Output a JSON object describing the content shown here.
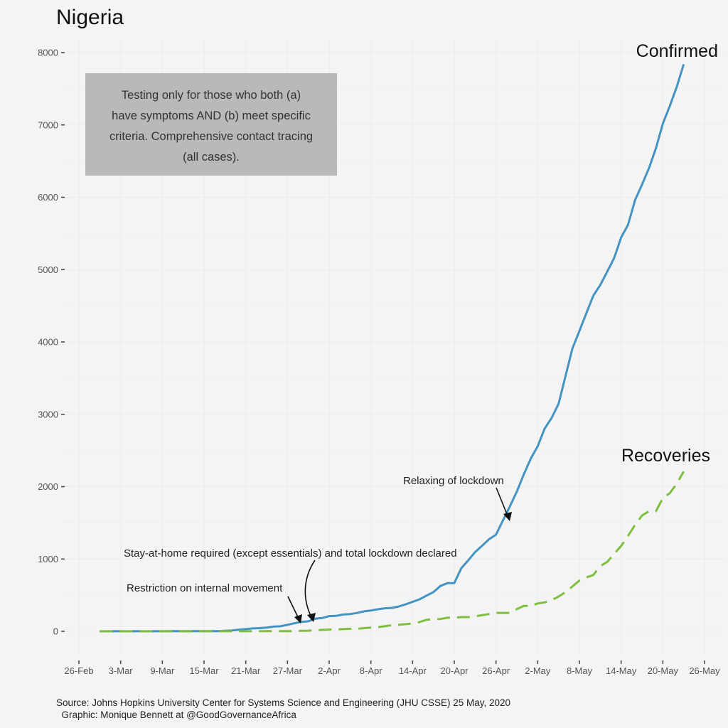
{
  "chart_data": {
    "type": "line",
    "title": "Nigeria",
    "xlabel": "",
    "ylabel": "",
    "ylim": [
      0,
      8000
    ],
    "yticks": [
      0,
      1000,
      2000,
      3000,
      4000,
      5000,
      6000,
      7000,
      8000
    ],
    "ytick_labels": [
      "0",
      "1000",
      "2000",
      "3000",
      "4000",
      "5000",
      "6000",
      "7000",
      "8000"
    ],
    "xlim": [
      "2020-02-26",
      "2020-05-26"
    ],
    "xticks": [
      "2020-02-26",
      "2020-03-03",
      "2020-03-09",
      "2020-03-15",
      "2020-03-21",
      "2020-03-27",
      "2020-04-02",
      "2020-04-08",
      "2020-04-14",
      "2020-04-20",
      "2020-04-26",
      "2020-05-02",
      "2020-05-08",
      "2020-05-14",
      "2020-05-20",
      "2020-05-26"
    ],
    "xtick_labels": [
      "26-Feb",
      "3-Mar",
      "9-Mar",
      "15-Mar",
      "21-Mar",
      "27-Mar",
      "2-Apr",
      "8-Apr",
      "14-Apr",
      "20-Apr",
      "26-Apr",
      "2-May",
      "8-May",
      "14-May",
      "20-May",
      "26-May"
    ],
    "grid": true,
    "start_date": "2020-02-29",
    "series": [
      {
        "name": "Confirmed",
        "color": "#4393c3",
        "style": "solid",
        "values": [
          1,
          1,
          1,
          1,
          1,
          1,
          1,
          1,
          1,
          1,
          2,
          2,
          2,
          2,
          2,
          2,
          2,
          2,
          8,
          12,
          22,
          30,
          40,
          44,
          51,
          65,
          70,
          89,
          111,
          131,
          139,
          174,
          184,
          210,
          214,
          232,
          238,
          254,
          276,
          288,
          305,
          318,
          323,
          343,
          373,
          407,
          442,
          493,
          542,
          627,
          665,
          665,
          873,
          981,
          1095,
          1182,
          1273,
          1337,
          1532,
          1728,
          1932,
          2170,
          2388,
          2558,
          2802,
          2950,
          3145,
          3526,
          3912,
          4151,
          4399,
          4641,
          4787,
          4971,
          5162,
          5445,
          5621,
          5959,
          6175,
          6401,
          6677,
          7016,
          7261,
          7526,
          7839
        ]
      },
      {
        "name": "Recoveries",
        "color": "#7fbf3f",
        "style": "dashed",
        "values": [
          0,
          0,
          0,
          0,
          0,
          0,
          0,
          0,
          0,
          0,
          0,
          0,
          0,
          0,
          1,
          1,
          1,
          1,
          1,
          1,
          1,
          1,
          2,
          2,
          2,
          2,
          2,
          3,
          3,
          8,
          9,
          15,
          20,
          25,
          25,
          30,
          35,
          35,
          44,
          51,
          58,
          70,
          85,
          91,
          99,
          107,
          128,
          159,
          166,
          170,
          188,
          188,
          197,
          197,
          208,
          222,
          239,
          255,
          255,
          255,
          307,
          351,
          351,
          385,
          400,
          429,
          481,
          542,
          620,
          702,
          745,
          778,
          902,
          959,
          1070,
          1180,
          1320,
          1470,
          1600,
          1660,
          1660,
          1840,
          1910,
          2040,
          2210
        ]
      }
    ],
    "series_labels": [
      {
        "text": "Confirmed",
        "series": "Confirmed"
      },
      {
        "text": "Recoveries",
        "series": "Recoveries"
      }
    ],
    "annotations": [
      {
        "text": "Restriction on internal movement",
        "target_date": "2020-03-30",
        "target_series": "Confirmed"
      },
      {
        "text": "Stay-at-home required (except essentials) and total lockdown declared",
        "target_date": "2020-03-31",
        "target_series": "Confirmed"
      },
      {
        "text": "Relaxing of lockdown",
        "target_date": "2020-04-28",
        "target_series": "Confirmed"
      }
    ],
    "info_box": {
      "lines": [
        "Testing only for those who both (a)",
        "have symptoms AND (b) meet specific",
        "criteria. Comprehensive contact tracing",
        "(all cases)."
      ],
      "background": "#b9b9b9"
    },
    "caption_lines": [
      "Source: Johns Hopkins University Center for Systems Science and Engineering (JHU CSSE) 25 May, 2020",
      "  Graphic: Monique Bennett at @GoodGovernanceAfrica"
    ]
  }
}
